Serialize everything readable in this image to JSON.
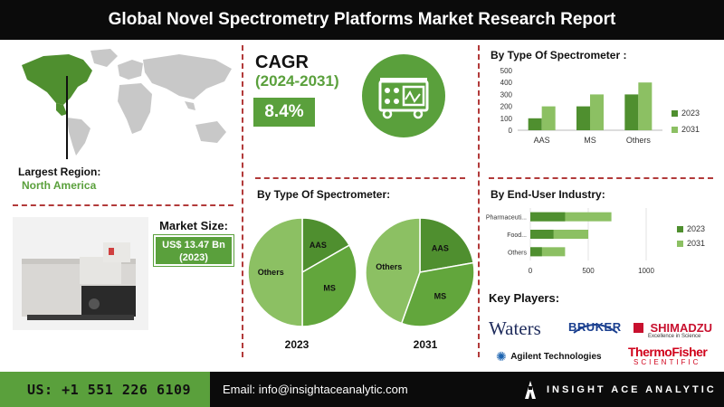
{
  "header": {
    "title": "Global Novel Spectrometry Platforms Market Research Report"
  },
  "region": {
    "label": "Largest Region:",
    "value": "North America"
  },
  "cagr": {
    "title": "CAGR",
    "years": "(2024-2031)",
    "value": "8.4%"
  },
  "market_size": {
    "label": "Market Size:",
    "value_line1": "US$ 13.47 Bn",
    "value_line2": "(2023)"
  },
  "pies": {
    "title": "By Type Of Spectrometer:"
  },
  "bar_type": {
    "title": "By Type Of Spectrometer :"
  },
  "bar_enduser": {
    "title": "By End-User Industry:"
  },
  "key_players": {
    "title": "Key Players:",
    "waters": "Waters",
    "bruker": "BRUKER",
    "shimadzu": "SHIMADZU",
    "shimadzu_tag": "Excellence in Science",
    "agilent": "Agilent Technologies",
    "thermo1": "ThermoFisher",
    "thermo2": "SCIENTIFIC"
  },
  "footer": {
    "phone": "US: +1 551 226 6109",
    "email": "Email: info@insightaceanalytic.com",
    "brand": "INSIGHT ACE ANALYTIC"
  },
  "colors": {
    "dark_green": "#4f8f2f",
    "light_green": "#8cc063",
    "accent": "#5aa03c",
    "mid_green": "#62a63c"
  },
  "icons": {
    "map": "world-map-icon",
    "spectrometer": "spectrometer-icon",
    "instrument": "instrument-illustration"
  },
  "chart_data": [
    {
      "type": "bar",
      "title": "By Type Of Spectrometer :",
      "categories": [
        "AAS",
        "MS",
        "Others"
      ],
      "series": [
        {
          "name": "2023",
          "values": [
            100,
            200,
            300
          ]
        },
        {
          "name": "2031",
          "values": [
            200,
            300,
            400
          ]
        }
      ],
      "ylim": [
        0,
        500
      ],
      "yticks": [
        0,
        100,
        200,
        300,
        400,
        500
      ],
      "legend": "right",
      "grid": false
    },
    {
      "type": "bar",
      "orientation": "horizontal",
      "title": "By End-User Industry:",
      "categories": [
        "Pharmaceuti...",
        "Food...",
        "Others"
      ],
      "series": [
        {
          "name": "2023",
          "values": [
            300,
            200,
            100
          ]
        },
        {
          "name": "2031",
          "values": [
            700,
            500,
            300
          ]
        }
      ],
      "xlim": [
        0,
        1000
      ],
      "xticks": [
        0,
        500,
        1000
      ],
      "legend": "right",
      "grid": true
    },
    {
      "type": "pie",
      "title": "2023",
      "labels": [
        "AAS",
        "MS",
        "Others"
      ],
      "values": [
        16.7,
        33.3,
        50.0
      ]
    },
    {
      "type": "pie",
      "title": "2031",
      "labels": [
        "AAS",
        "MS",
        "Others"
      ],
      "values": [
        22.2,
        33.3,
        44.5
      ]
    }
  ]
}
